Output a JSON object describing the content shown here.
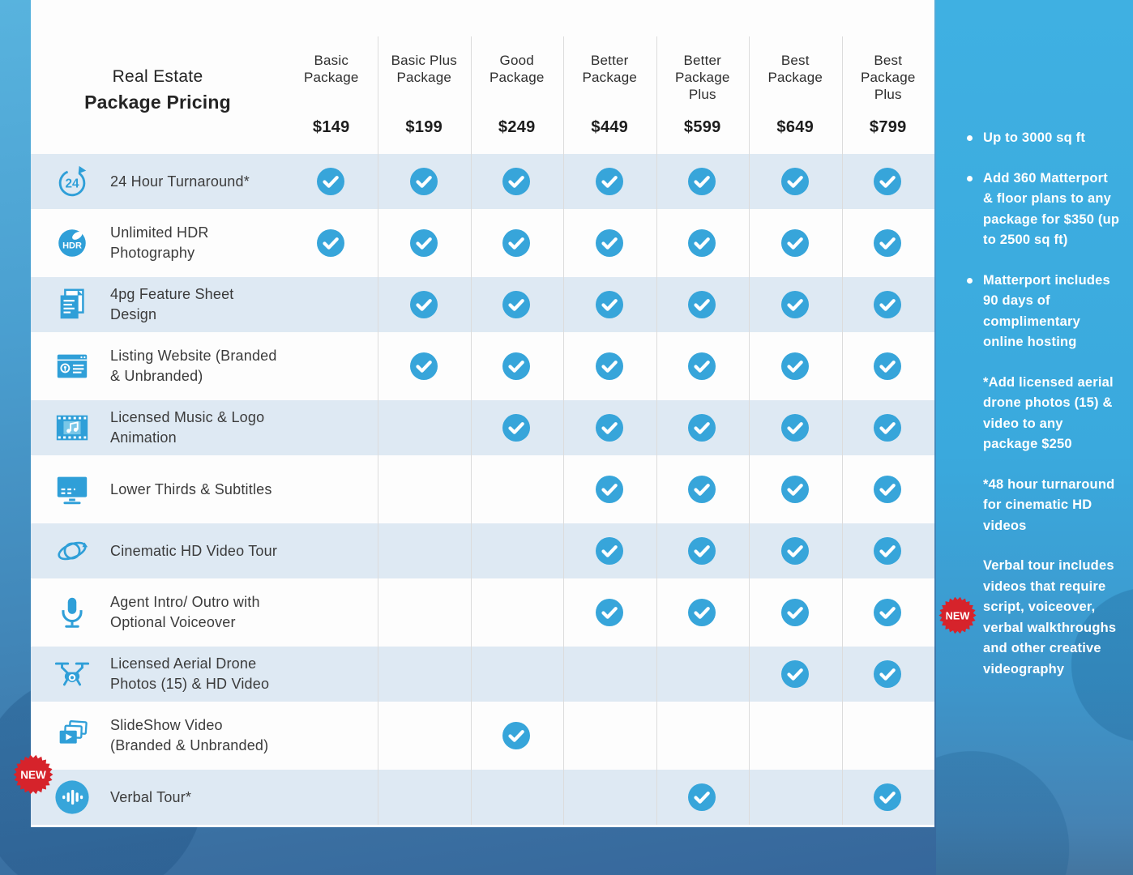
{
  "title": {
    "line1": "Real Estate",
    "line2": "Package Pricing"
  },
  "packages": [
    {
      "name": "Basic Package",
      "price": "$149"
    },
    {
      "name": "Basic Plus Package",
      "price": "$199"
    },
    {
      "name": "Good Package",
      "price": "$249"
    },
    {
      "name": "Better Package",
      "price": "$449"
    },
    {
      "name": "Better Package Plus",
      "price": "$599"
    },
    {
      "name": "Best Package",
      "price": "$649"
    },
    {
      "name": "Best Package Plus",
      "price": "$799"
    }
  ],
  "features": [
    {
      "label": "24 Hour Turnaround*",
      "icon": "24-hour-turnaround-icon",
      "included": [
        true,
        true,
        true,
        true,
        true,
        true,
        true
      ]
    },
    {
      "label": "Unlimited HDR Photography",
      "icon": "hdr-photography-icon",
      "included": [
        true,
        true,
        true,
        true,
        true,
        true,
        true
      ]
    },
    {
      "label": "4pg Feature Sheet Design",
      "icon": "feature-sheet-icon",
      "included": [
        false,
        true,
        true,
        true,
        true,
        true,
        true
      ]
    },
    {
      "label": "Listing Website (Branded & Unbranded)",
      "icon": "listing-website-icon",
      "included": [
        false,
        true,
        true,
        true,
        true,
        true,
        true
      ]
    },
    {
      "label": "Licensed Music & Logo Animation",
      "icon": "licensed-music-icon",
      "included": [
        false,
        false,
        true,
        true,
        true,
        true,
        true
      ]
    },
    {
      "label": "Lower Thirds & Subtitles",
      "icon": "lower-thirds-icon",
      "included": [
        false,
        false,
        false,
        true,
        true,
        true,
        true
      ]
    },
    {
      "label": "Cinematic HD Video Tour",
      "icon": "cinematic-video-icon",
      "included": [
        false,
        false,
        false,
        true,
        true,
        true,
        true
      ]
    },
    {
      "label": "Agent Intro/ Outro with Optional Voiceover",
      "icon": "microphone-icon",
      "included": [
        false,
        false,
        false,
        true,
        true,
        true,
        true
      ]
    },
    {
      "label": "Licensed Aerial Drone Photos (15) & HD Video",
      "icon": "drone-icon",
      "included": [
        false,
        false,
        false,
        false,
        false,
        true,
        true
      ]
    },
    {
      "label": "SlideShow Video (Branded & Unbranded)",
      "icon": "slideshow-icon",
      "included": [
        false,
        false,
        true,
        false,
        false,
        false,
        false
      ]
    },
    {
      "label": "Verbal Tour*",
      "icon": "verbal-tour-icon",
      "included": [
        false,
        false,
        false,
        false,
        true,
        false,
        true
      ]
    }
  ],
  "sidebar": {
    "items": [
      {
        "text": "Up to 3000 sq ft",
        "bullet": true,
        "badge": false
      },
      {
        "text": "Add 360 Matterport & floor plans to any package for $350 (up to 2500 sq ft)",
        "bullet": true,
        "badge": false
      },
      {
        "text": "Matterport includes 90 days of complimentary online hosting",
        "bullet": true,
        "badge": false
      },
      {
        "text": "*Add licensed aerial drone photos (15) & video to any package $250",
        "bullet": false,
        "badge": false
      },
      {
        "text": "*48 hour turnaround for cinematic HD videos",
        "bullet": false,
        "badge": false
      },
      {
        "text": "Verbal tour includes videos that require script, voiceover, verbal walkthroughs and other creative videography",
        "bullet": false,
        "badge": true
      }
    ]
  },
  "badge_label": "NEW",
  "colors": {
    "accent_blue": "#2f9fd8",
    "check_blue": "#37a5da",
    "stripe_blue": "#dee9f3",
    "sidebar_blue": "#3aa9dd",
    "badge_red": "#d6232b"
  }
}
